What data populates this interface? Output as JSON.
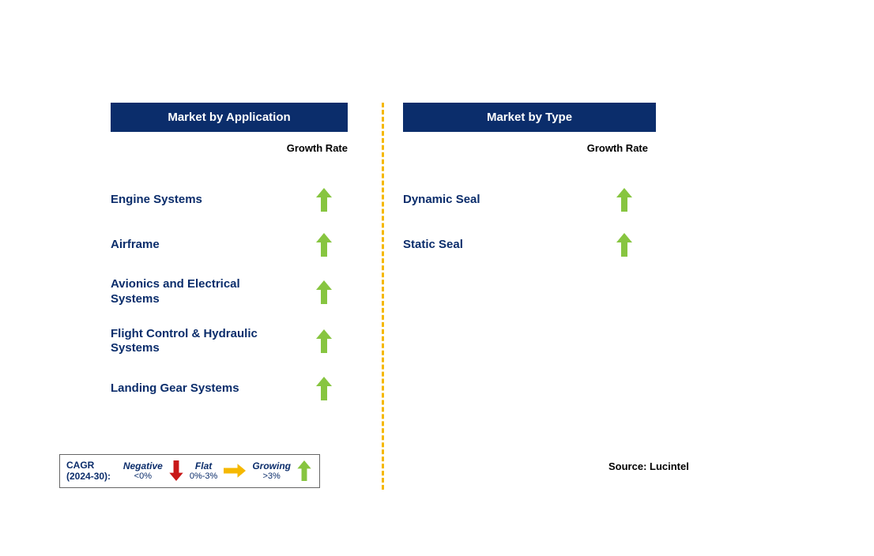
{
  "colors": {
    "header_bg": "#0b2d6b",
    "header_text": "#ffffff",
    "item_text": "#0b2d6b",
    "growth_label": "#000000",
    "divider": "#f5b800",
    "arrow_growing": "#87c540",
    "arrow_flat": "#f5b800",
    "arrow_negative": "#c81818",
    "background": "#ffffff"
  },
  "typography": {
    "header_fontsize": 15,
    "item_fontsize": 15,
    "growth_label_fontsize": 13,
    "legend_fontsize": 12,
    "source_fontsize": 13
  },
  "panels": {
    "left": {
      "title": "Market by Application",
      "growth_header": "Growth Rate",
      "items": [
        {
          "label": "Engine Systems",
          "trend": "growing"
        },
        {
          "label": "Airframe",
          "trend": "growing"
        },
        {
          "label": "Avionics and Electrical Systems",
          "trend": "growing"
        },
        {
          "label": "Flight Control & Hydraulic Systems",
          "trend": "growing"
        },
        {
          "label": "Landing Gear Systems",
          "trend": "growing"
        }
      ]
    },
    "right": {
      "title": "Market by Type",
      "growth_header": "Growth Rate",
      "items": [
        {
          "label": "Dynamic Seal",
          "trend": "growing"
        },
        {
          "label": "Static Seal",
          "trend": "growing"
        }
      ]
    }
  },
  "legend": {
    "period_label": "CAGR (2024-30):",
    "segments": [
      {
        "title": "Negative",
        "range": "<0%",
        "trend": "negative"
      },
      {
        "title": "Flat",
        "range": "0%-3%",
        "trend": "flat"
      },
      {
        "title": "Growing",
        "range": ">3%",
        "trend": "growing"
      }
    ]
  },
  "source": "Source: Lucintel"
}
